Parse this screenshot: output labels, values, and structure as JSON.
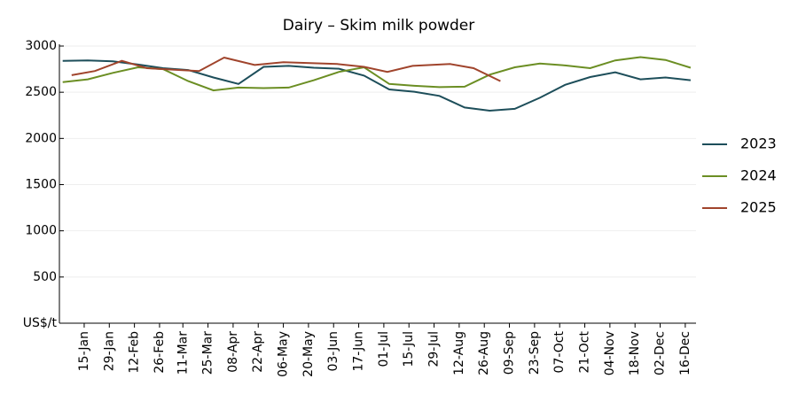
{
  "chart_data": {
    "type": "line",
    "title": "Dairy – Skim milk powder",
    "xlim": [
      0,
      356
    ],
    "xticks": [
      {
        "value": 15,
        "label": "15-Jan"
      },
      {
        "value": 29,
        "label": "29-Jan"
      },
      {
        "value": 43,
        "label": "12-Feb"
      },
      {
        "value": 57,
        "label": "26-Feb"
      },
      {
        "value": 70,
        "label": "11-Mar"
      },
      {
        "value": 84,
        "label": "25-Mar"
      },
      {
        "value": 98,
        "label": "08-Apr"
      },
      {
        "value": 112,
        "label": "22-Apr"
      },
      {
        "value": 126,
        "label": "06-May"
      },
      {
        "value": 140,
        "label": "20-May"
      },
      {
        "value": 154,
        "label": "03-Jun"
      },
      {
        "value": 168,
        "label": "17-Jun"
      },
      {
        "value": 182,
        "label": "01-Jul"
      },
      {
        "value": 196,
        "label": "15-Jul"
      },
      {
        "value": 210,
        "label": "29-Jul"
      },
      {
        "value": 224,
        "label": "12-Aug"
      },
      {
        "value": 238,
        "label": "26-Aug"
      },
      {
        "value": 252,
        "label": "09-Sep"
      },
      {
        "value": 266,
        "label": "23-Sep"
      },
      {
        "value": 280,
        "label": "07-Oct"
      },
      {
        "value": 294,
        "label": "21-Oct"
      },
      {
        "value": 308,
        "label": "04-Nov"
      },
      {
        "value": 322,
        "label": "18-Nov"
      },
      {
        "value": 336,
        "label": "02-Dec"
      },
      {
        "value": 350,
        "label": "16-Dec"
      }
    ],
    "ylim": [
      0,
      3000
    ],
    "yticks": [
      {
        "value": 0,
        "label": "US$/t"
      },
      500,
      1000,
      1500,
      2000,
      2500,
      3000
    ],
    "grid": true,
    "legend": "right",
    "series": [
      {
        "name": "2023",
        "color": "#1d4e5a",
        "x": [
          3,
          17,
          31,
          45,
          59,
          73,
          87,
          101,
          115,
          129,
          143,
          157,
          171,
          185,
          199,
          213,
          227,
          241,
          255,
          269,
          283,
          297,
          311,
          325,
          339,
          353
        ],
        "values": [
          2840,
          2845,
          2835,
          2800,
          2760,
          2740,
          2660,
          2590,
          2775,
          2785,
          2765,
          2755,
          2680,
          2530,
          2505,
          2460,
          2335,
          2300,
          2320,
          2440,
          2580,
          2665,
          2715,
          2640,
          2660,
          2630
        ]
      },
      {
        "name": "2024",
        "color": "#6b8e23",
        "x": [
          3,
          17,
          31,
          45,
          59,
          73,
          87,
          101,
          115,
          129,
          143,
          157,
          171,
          185,
          199,
          213,
          227,
          241,
          255,
          269,
          283,
          297,
          311,
          325,
          339,
          353
        ],
        "values": [
          2610,
          2640,
          2710,
          2770,
          2750,
          2620,
          2520,
          2550,
          2545,
          2550,
          2630,
          2720,
          2770,
          2590,
          2570,
          2555,
          2560,
          2690,
          2770,
          2810,
          2790,
          2760,
          2845,
          2880,
          2850,
          2765
        ]
      },
      {
        "name": "2025",
        "color": "#a0442c",
        "x": [
          8,
          21,
          36,
          50,
          64,
          79,
          93,
          110,
          126,
          141,
          156,
          171,
          184,
          198,
          219,
          232,
          247
        ],
        "values": [
          2685,
          2730,
          2840,
          2760,
          2745,
          2730,
          2875,
          2795,
          2825,
          2815,
          2805,
          2775,
          2720,
          2785,
          2805,
          2760,
          2620
        ]
      }
    ]
  }
}
